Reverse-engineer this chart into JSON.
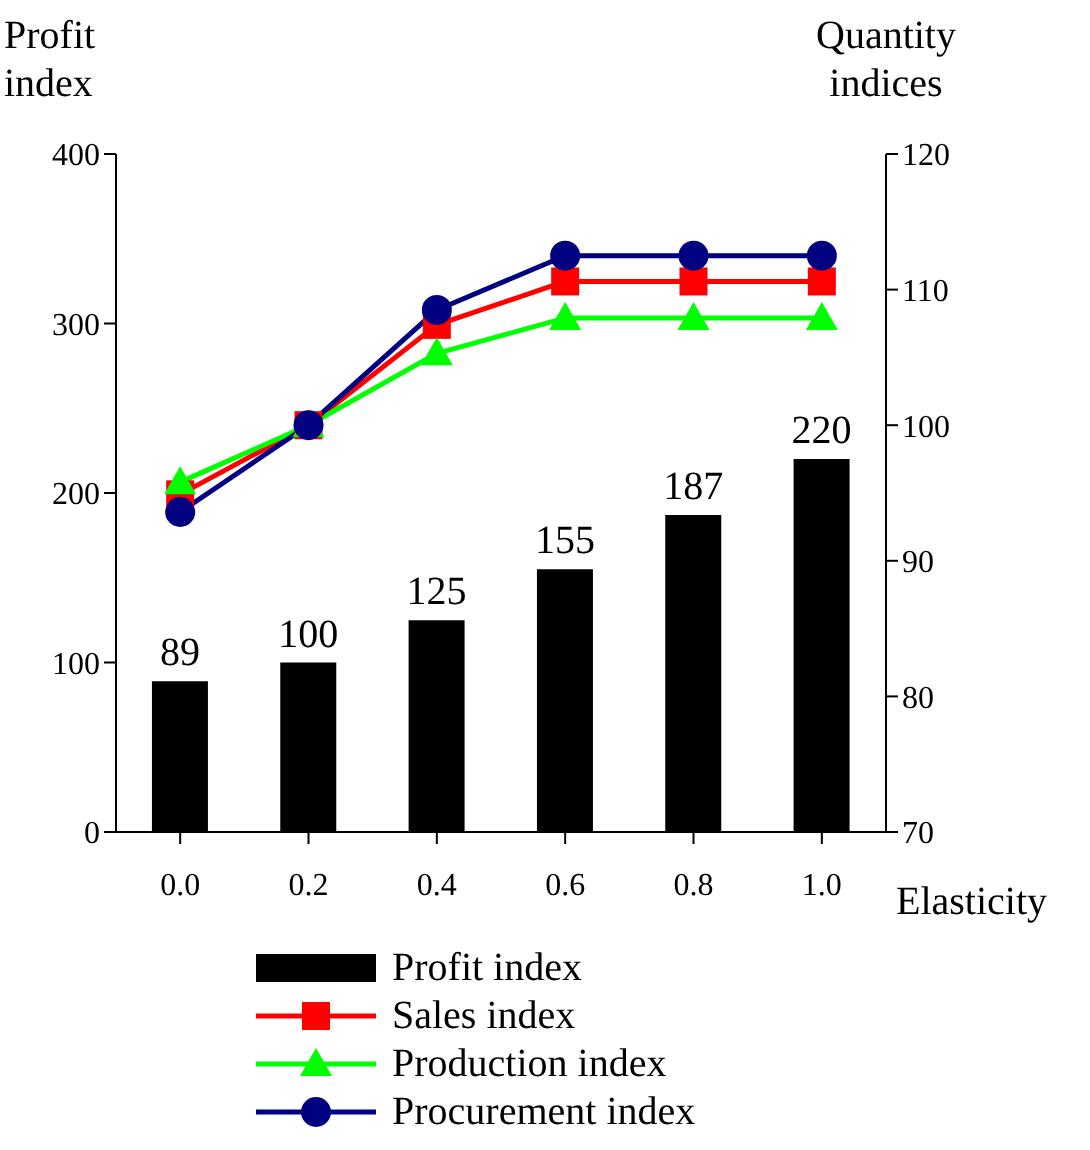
{
  "chart_data": {
    "type": "bar",
    "ylabel": "Profit index",
    "y2label": "Quantity indices",
    "xlabel": "Elasticity",
    "categories": [
      "0.0",
      "0.2",
      "0.4",
      "0.6",
      "0.8",
      "1.0"
    ],
    "series": [
      {
        "name": "Profit index",
        "color": "#000000",
        "values": [
          89,
          100,
          125,
          155,
          187,
          220
        ],
        "value_labels": [
          "89",
          "100",
          "125",
          "155",
          "187",
          "220"
        ]
      },
      {
        "name": "Sales index",
        "type": "line",
        "axis": "y2",
        "marker": "square",
        "color": "#ff0000",
        "values": [
          94.9,
          100,
          107.4,
          110.6,
          110.6,
          110.6
        ]
      },
      {
        "name": "Production index",
        "type": "line",
        "axis": "y2",
        "marker": "triangle",
        "color": "#00ff00",
        "values": [
          95.8,
          100,
          105.3,
          107.9,
          107.9,
          107.9
        ]
      },
      {
        "name": "Procurement index",
        "type": "line",
        "axis": "y2",
        "marker": "circle",
        "color": "#000080",
        "values": [
          93.6,
          100,
          108.5,
          112.5,
          112.5,
          112.5
        ]
      }
    ],
    "ylim": [
      0,
      400
    ],
    "yticks": [
      0,
      100,
      200,
      300,
      400
    ],
    "y2lim": [
      70,
      120
    ],
    "y2ticks": [
      70,
      80,
      90,
      100,
      110,
      120
    ],
    "grid": false,
    "legend": "bottom"
  }
}
